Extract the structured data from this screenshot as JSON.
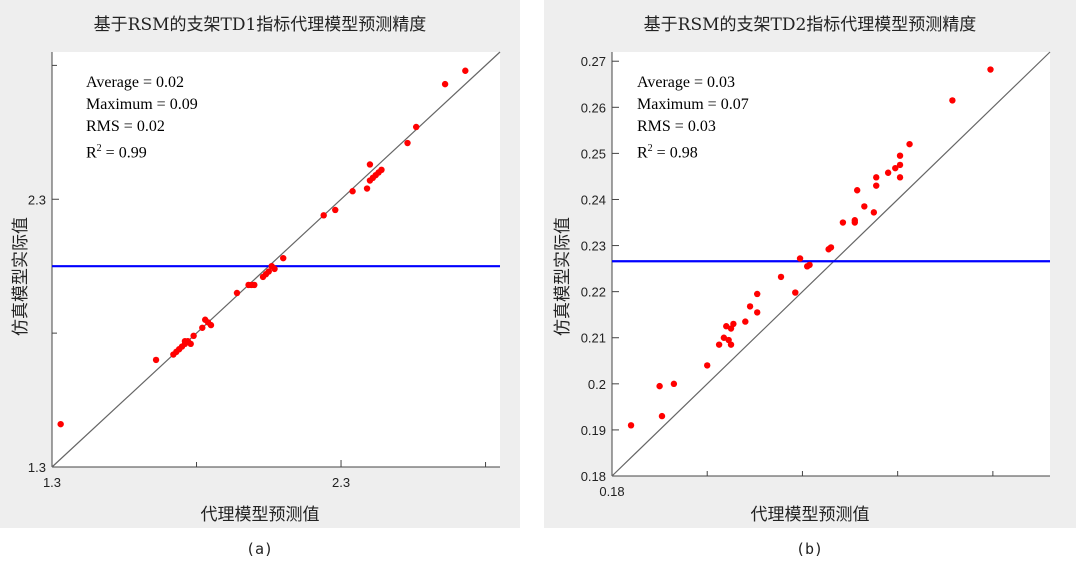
{
  "chart_data": [
    {
      "type": "scatter",
      "title": "基于RSM的支架TD1指标代理模型预测精度",
      "xlabel": "代理模型预测值",
      "ylabel": "仿真模型实际值",
      "xlim": [
        1.3,
        2.85
      ],
      "ylim": [
        1.3,
        2.85
      ],
      "x_ticks": [
        1.3,
        2.3
      ],
      "y_ticks": [
        1.3,
        2.3
      ],
      "stats": {
        "average": "Average = 0.02",
        "maximum": "Maximum = 0.09",
        "rms": "RMS = 0.02",
        "r2_prefix": "R",
        "r2_sup": "2",
        "r2_value": " = 0.99"
      },
      "reference_line": {
        "type": "y=x"
      },
      "mean_line": {
        "y": 2.05
      },
      "colors": {
        "points": "#ff0000",
        "mean_line": "#0000ff",
        "diagonal": "#666666"
      },
      "points": [
        [
          1.33,
          1.46
        ],
        [
          1.66,
          1.7
        ],
        [
          1.72,
          1.72
        ],
        [
          1.73,
          1.73
        ],
        [
          1.74,
          1.74
        ],
        [
          1.75,
          1.75
        ],
        [
          1.76,
          1.76
        ],
        [
          1.77,
          1.77
        ],
        [
          1.76,
          1.77
        ],
        [
          1.78,
          1.76
        ],
        [
          1.79,
          1.79
        ],
        [
          1.82,
          1.82
        ],
        [
          1.83,
          1.85
        ],
        [
          1.84,
          1.84
        ],
        [
          1.85,
          1.83
        ],
        [
          1.94,
          1.95
        ],
        [
          1.98,
          1.98
        ],
        [
          1.99,
          1.98
        ],
        [
          2.0,
          1.98
        ],
        [
          2.03,
          2.01
        ],
        [
          2.04,
          2.02
        ],
        [
          2.05,
          2.03
        ],
        [
          2.06,
          2.05
        ],
        [
          2.07,
          2.04
        ],
        [
          2.1,
          2.08
        ],
        [
          2.24,
          2.24
        ],
        [
          2.28,
          2.26
        ],
        [
          2.34,
          2.33
        ],
        [
          2.39,
          2.34
        ],
        [
          2.4,
          2.37
        ],
        [
          2.41,
          2.38
        ],
        [
          2.42,
          2.39
        ],
        [
          2.43,
          2.4
        ],
        [
          2.44,
          2.41
        ],
        [
          2.4,
          2.43
        ],
        [
          2.53,
          2.51
        ],
        [
          2.56,
          2.57
        ],
        [
          2.66,
          2.73
        ],
        [
          2.73,
          2.78
        ]
      ]
    },
    {
      "type": "scatter",
      "title": "基于RSM的支架TD2指标代理模型预测精度",
      "xlabel": "代理模型预测值",
      "ylabel": "仿真模型实际值",
      "xlim": [
        0.18,
        0.272
      ],
      "ylim": [
        0.18,
        0.272
      ],
      "x_ticks": [
        0.18
      ],
      "y_ticks": [
        0.18,
        0.19,
        0.2,
        0.21,
        0.22,
        0.23,
        0.24,
        0.25,
        0.26,
        0.27
      ],
      "y_tick_labels": [
        "0.18",
        "0.19",
        "0.2",
        "0.21",
        "0.22",
        "0.23",
        "0.24",
        "0.25",
        "0.26",
        "0.27"
      ],
      "stats": {
        "average": "Average = 0.03",
        "maximum": "Maximum = 0.07",
        "rms": "RMS = 0.03",
        "r2_prefix": "R",
        "r2_sup": "2",
        "r2_value": " = 0.98"
      },
      "reference_line": {
        "type": "y=x"
      },
      "mean_line": {
        "y": 0.2266
      },
      "colors": {
        "points": "#ff0000",
        "mean_line": "#0000ff",
        "diagonal": "#666666"
      },
      "points": [
        [
          0.184,
          0.191
        ],
        [
          0.19,
          0.1995
        ],
        [
          0.1905,
          0.193
        ],
        [
          0.193,
          0.2
        ],
        [
          0.2,
          0.204
        ],
        [
          0.2025,
          0.2085
        ],
        [
          0.2035,
          0.21
        ],
        [
          0.204,
          0.2125
        ],
        [
          0.2045,
          0.2095
        ],
        [
          0.205,
          0.212
        ],
        [
          0.205,
          0.2085
        ],
        [
          0.2055,
          0.213
        ],
        [
          0.208,
          0.2135
        ],
        [
          0.209,
          0.2168
        ],
        [
          0.2105,
          0.2195
        ],
        [
          0.2105,
          0.2155
        ],
        [
          0.2155,
          0.2232
        ],
        [
          0.2185,
          0.2198
        ],
        [
          0.2195,
          0.2272
        ],
        [
          0.221,
          0.2255
        ],
        [
          0.2215,
          0.2258
        ],
        [
          0.2255,
          0.2292
        ],
        [
          0.226,
          0.2296
        ],
        [
          0.2285,
          0.235
        ],
        [
          0.231,
          0.235
        ],
        [
          0.231,
          0.2355
        ],
        [
          0.2315,
          0.242
        ],
        [
          0.233,
          0.2385
        ],
        [
          0.235,
          0.2372
        ],
        [
          0.2355,
          0.243
        ],
        [
          0.2355,
          0.2448
        ],
        [
          0.238,
          0.2458
        ],
        [
          0.2395,
          0.2468
        ],
        [
          0.2405,
          0.2475
        ],
        [
          0.2405,
          0.2495
        ],
        [
          0.2405,
          0.2448
        ],
        [
          0.2425,
          0.252
        ],
        [
          0.2515,
          0.2615
        ],
        [
          0.2595,
          0.2682
        ]
      ]
    }
  ],
  "captions": [
    "(a)",
    "(b)"
  ]
}
